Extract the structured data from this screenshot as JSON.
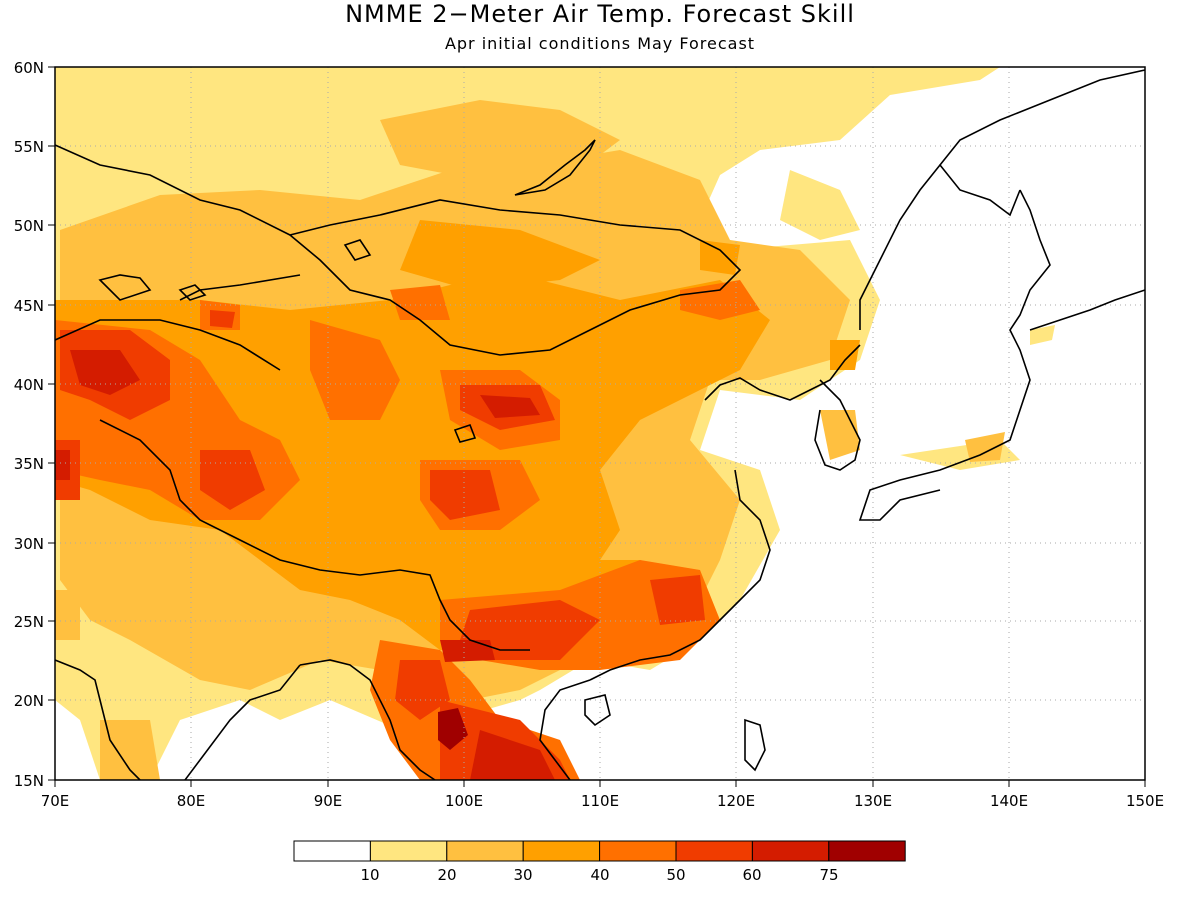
{
  "title": "NMME 2−Meter Air Temp. Forecast Skill",
  "subtitle": "Apr initial conditions  May Forecast",
  "lat_ticks": [
    "15N",
    "20N",
    "25N",
    "30N",
    "35N",
    "40N",
    "45N",
    "50N",
    "55N",
    "60N"
  ],
  "lon_ticks": [
    "70E",
    "80E",
    "90E",
    "100E",
    "110E",
    "120E",
    "130E",
    "140E",
    "150E"
  ],
  "legend": {
    "labels": [
      "10",
      "20",
      "30",
      "40",
      "50",
      "60",
      "75"
    ],
    "colors": [
      "#ffffff",
      "#ffe680",
      "#ffc040",
      "#ffa000",
      "#ff7000",
      "#f03c00",
      "#d41c00",
      "#a00000"
    ]
  },
  "colors": {
    "coast": "#000000",
    "grid": "#aaaaaa"
  }
}
